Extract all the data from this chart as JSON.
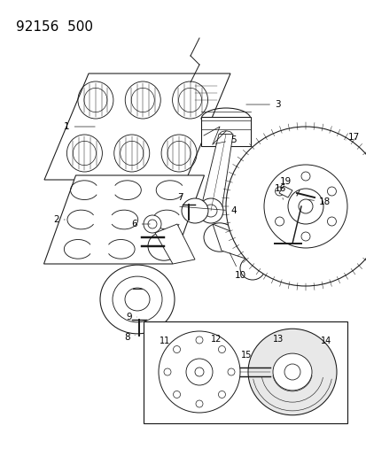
{
  "title": "92156  500",
  "bg_color": "#ffffff",
  "line_color": "#1a1a1a",
  "fig_width": 4.14,
  "fig_height": 5.33,
  "dpi": 100,
  "xlim": [
    0,
    414
  ],
  "ylim": [
    0,
    533
  ]
}
